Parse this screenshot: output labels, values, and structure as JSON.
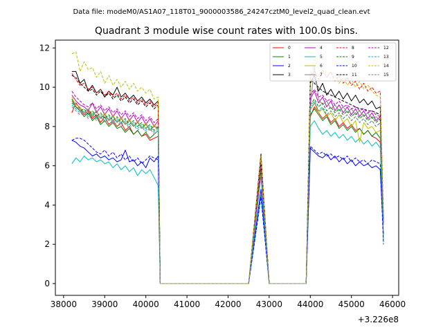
{
  "suptitle": "Data file: modeM0/AS1A07_118T01_9000003586_24247cztM0_level2_quad_clean.evt",
  "chart_data": {
    "type": "line",
    "title": "Quadrant 3 module wise count rates with 100.0s bins.",
    "xlabel": "",
    "ylabel": "",
    "x_offset_label": "+3.226e8",
    "xlim": [
      37800,
      46150
    ],
    "ylim": [
      -0.6,
      12.4
    ],
    "x_ticks": [
      38000,
      39000,
      40000,
      41000,
      42000,
      43000,
      44000,
      45000,
      46000
    ],
    "x_tick_labels": [
      "38000",
      "39000",
      "40000",
      "41000",
      "42000",
      "43000",
      "44000",
      "45000",
      "46000"
    ],
    "y_ticks": [
      0,
      2,
      4,
      6,
      8,
      10,
      12
    ],
    "y_tick_labels": [
      "0",
      "2",
      "4",
      "6",
      "8",
      "10",
      "12"
    ],
    "grid": false,
    "legend_position": "top-right",
    "x": [
      38200,
      38300,
      38400,
      38500,
      38600,
      38700,
      38800,
      38900,
      39000,
      39100,
      39200,
      39300,
      39400,
      39500,
      39600,
      39700,
      39800,
      39900,
      40000,
      40100,
      40200,
      40300,
      40350,
      40450,
      42500,
      42800,
      43000,
      43900,
      44000,
      44100,
      44200,
      44300,
      44400,
      44500,
      44600,
      44700,
      44800,
      44900,
      45000,
      45100,
      45200,
      45300,
      45400,
      45500,
      45600,
      45700,
      45780
    ],
    "series": [
      {
        "name": "0",
        "color": "#ff0000",
        "dashed": false,
        "values": [
          8.7,
          9.2,
          8.9,
          8.6,
          8.8,
          8.4,
          8.6,
          8.2,
          8.5,
          8.1,
          8.3,
          8.0,
          8.2,
          7.8,
          8.0,
          7.6,
          7.8,
          7.5,
          7.6,
          7.3,
          7.4,
          7.5,
          0,
          0,
          0,
          5.5,
          0,
          0,
          8.5,
          9.0,
          8.7,
          8.4,
          8.6,
          8.2,
          8.4,
          8.0,
          8.2,
          7.9,
          8.1,
          7.8,
          7.9,
          7.6,
          7.8,
          7.5,
          7.4,
          7.2,
          3.0
        ]
      },
      {
        "name": "1",
        "color": "#008000",
        "dashed": false,
        "values": [
          9.4,
          9.0,
          8.8,
          8.5,
          8.7,
          8.3,
          8.5,
          8.1,
          8.3,
          8.0,
          8.2,
          7.9,
          8.0,
          7.7,
          7.9,
          7.6,
          7.8,
          7.5,
          7.7,
          7.4,
          7.6,
          7.8,
          0,
          0,
          0,
          5.6,
          0,
          0,
          8.6,
          8.9,
          8.6,
          8.3,
          8.5,
          8.1,
          8.3,
          7.9,
          8.1,
          7.8,
          8.0,
          7.7,
          7.9,
          7.6,
          7.8,
          7.5,
          7.7,
          7.4,
          3.0
        ]
      },
      {
        "name": "2",
        "color": "#0000ff",
        "dashed": false,
        "values": [
          7.3,
          7.2,
          7.0,
          6.9,
          6.7,
          6.5,
          6.6,
          6.4,
          6.5,
          6.3,
          6.4,
          6.2,
          6.3,
          6.8,
          6.2,
          6.3,
          6.0,
          6.2,
          5.9,
          6.4,
          6.2,
          6.5,
          0,
          0,
          0,
          4.8,
          0,
          0,
          6.9,
          6.7,
          6.5,
          6.4,
          6.6,
          6.3,
          6.5,
          6.2,
          6.4,
          6.1,
          6.3,
          6.0,
          6.2,
          6.0,
          6.1,
          5.9,
          6.0,
          5.8,
          2.5
        ]
      },
      {
        "name": "3",
        "color": "#000000",
        "dashed": false,
        "values": [
          10.8,
          10.8,
          10.2,
          10.4,
          9.8,
          10.1,
          9.7,
          9.9,
          9.5,
          9.8,
          9.6,
          10.0,
          9.5,
          9.7,
          9.4,
          9.6,
          9.3,
          9.5,
          9.2,
          9.4,
          9.1,
          9.3,
          0,
          0,
          0,
          6.6,
          0,
          0,
          10.2,
          10.6,
          9.8,
          10.2,
          9.6,
          9.9,
          9.5,
          9.8,
          9.4,
          9.7,
          9.3,
          9.6,
          9.2,
          9.4,
          9.1,
          9.3,
          8.9,
          9.0,
          3.2
        ]
      },
      {
        "name": "4",
        "color": "#bf00bf",
        "dashed": false,
        "values": [
          9.6,
          9.3,
          9.1,
          9.0,
          8.8,
          9.2,
          8.7,
          9.0,
          8.6,
          8.9,
          8.5,
          8.8,
          8.4,
          8.7,
          8.3,
          8.6,
          8.2,
          8.5,
          8.1,
          8.4,
          8.0,
          8.3,
          0,
          0,
          0,
          5.9,
          0,
          0,
          9.4,
          9.8,
          9.2,
          9.5,
          9.0,
          9.3,
          8.8,
          9.1,
          8.7,
          9.0,
          8.6,
          8.9,
          8.5,
          8.8,
          8.4,
          8.7,
          8.3,
          8.5,
          3.1
        ]
      },
      {
        "name": "5",
        "color": "#00bfbf",
        "dashed": false,
        "values": [
          6.1,
          6.4,
          6.2,
          6.5,
          6.3,
          6.4,
          6.2,
          6.3,
          6.1,
          6.2,
          5.9,
          6.1,
          5.8,
          6.0,
          5.7,
          5.9,
          5.5,
          5.8,
          5.6,
          5.8,
          5.4,
          5.0,
          0,
          0,
          0,
          4.5,
          0,
          0,
          8.0,
          8.3,
          7.9,
          7.6,
          7.8,
          7.5,
          7.7,
          7.4,
          7.6,
          7.3,
          7.5,
          7.2,
          7.4,
          7.1,
          7.3,
          7.0,
          7.2,
          6.9,
          2.2
        ]
      },
      {
        "name": "6",
        "color": "#bfbf00",
        "dashed": false,
        "values": [
          9.5,
          9.1,
          9.0,
          8.7,
          8.9,
          8.6,
          8.8,
          8.4,
          8.7,
          8.3,
          8.6,
          8.2,
          8.5,
          8.1,
          8.4,
          8.0,
          8.3,
          7.9,
          8.2,
          7.8,
          8.1,
          7.9,
          0,
          0,
          0,
          6.3,
          0,
          0,
          8.8,
          9.2,
          8.7,
          8.9,
          8.5,
          8.7,
          8.3,
          8.6,
          8.2,
          8.4,
          8.0,
          8.3,
          7.2,
          8.2,
          7.9,
          8.0,
          7.7,
          7.8,
          3.1
        ]
      },
      {
        "name": "7",
        "color": "#808080",
        "dashed": false,
        "values": [
          9.3,
          9.0,
          8.9,
          8.7,
          8.9,
          8.5,
          8.8,
          8.4,
          8.6,
          8.3,
          8.5,
          8.2,
          8.4,
          8.1,
          8.3,
          8.0,
          8.2,
          7.9,
          8.1,
          7.8,
          8.0,
          7.9,
          0,
          0,
          0,
          5.8,
          0,
          0,
          9.0,
          11.1,
          9.4,
          9.1,
          9.3,
          8.9,
          9.1,
          8.8,
          9.0,
          8.7,
          8.9,
          8.6,
          8.8,
          8.5,
          8.7,
          8.4,
          8.5,
          8.3,
          3.0
        ]
      },
      {
        "name": "8",
        "color": "#ff0000",
        "dashed": true,
        "values": [
          10.7,
          10.4,
          10.1,
          10.2,
          9.9,
          10.0,
          9.7,
          9.9,
          9.6,
          9.8,
          9.5,
          9.7,
          9.4,
          9.6,
          9.3,
          9.5,
          9.2,
          9.4,
          9.1,
          9.3,
          9.0,
          9.2,
          0,
          0,
          0,
          6.4,
          0,
          0,
          10.6,
          10.8,
          10.4,
          10.9,
          10.5,
          10.8,
          10.3,
          10.6,
          10.2,
          10.5,
          10.1,
          10.3,
          9.9,
          10.2,
          9.8,
          10.0,
          9.7,
          9.8,
          3.4
        ]
      },
      {
        "name": "9",
        "color": "#008000",
        "dashed": true,
        "values": [
          9.2,
          9.0,
          8.8,
          8.9,
          8.6,
          8.8,
          8.5,
          8.7,
          8.4,
          8.6,
          8.3,
          8.5,
          8.2,
          8.4,
          8.1,
          8.3,
          8.0,
          8.2,
          7.9,
          8.1,
          7.8,
          8.0,
          0,
          0,
          0,
          5.7,
          0,
          0,
          9.1,
          9.4,
          9.0,
          9.2,
          8.8,
          9.0,
          8.7,
          8.9,
          8.6,
          8.8,
          8.5,
          8.7,
          8.4,
          8.6,
          8.3,
          8.5,
          8.2,
          8.4,
          3.0
        ]
      },
      {
        "name": "10",
        "color": "#0000ff",
        "dashed": true,
        "values": [
          7.3,
          7.4,
          7.4,
          7.3,
          7.1,
          6.9,
          6.7,
          6.6,
          6.8,
          6.5,
          6.7,
          6.4,
          6.6,
          6.3,
          6.5,
          6.2,
          6.4,
          6.1,
          6.3,
          6.5,
          6.4,
          6.3,
          0,
          0,
          0,
          4.4,
          0,
          0,
          7.0,
          6.8,
          6.6,
          6.7,
          6.5,
          6.6,
          6.4,
          6.5,
          6.3,
          6.5,
          6.2,
          6.4,
          6.2,
          6.3,
          6.1,
          6.3,
          6.2,
          6.1,
          2.0
        ]
      },
      {
        "name": "11",
        "color": "#000000",
        "dashed": true,
        "values": [
          10.6,
          10.5,
          10.2,
          10.0,
          9.8,
          9.9,
          9.6,
          9.8,
          9.5,
          9.7,
          9.4,
          9.6,
          9.3,
          9.5,
          9.2,
          9.4,
          9.1,
          9.3,
          9.0,
          9.2,
          8.9,
          9.1,
          0,
          0,
          0,
          6.1,
          0,
          0,
          10.4,
          10.2,
          10.0,
          9.8,
          9.7,
          9.6,
          9.5,
          9.4,
          9.3,
          9.2,
          9.1,
          9.0,
          8.9,
          8.9,
          8.8,
          8.8,
          8.7,
          8.6,
          3.2
        ]
      },
      {
        "name": "12",
        "color": "#bf00bf",
        "dashed": true,
        "values": [
          9.8,
          9.5,
          9.3,
          9.1,
          9.0,
          9.2,
          8.9,
          9.1,
          8.8,
          9.0,
          8.7,
          8.9,
          8.6,
          8.8,
          8.5,
          8.7,
          8.4,
          8.6,
          8.3,
          8.5,
          8.2,
          8.4,
          0,
          0,
          0,
          5.9,
          0,
          0,
          9.6,
          9.9,
          9.5,
          9.6,
          9.3,
          9.4,
          9.1,
          9.3,
          9.0,
          9.1,
          8.9,
          9.0,
          8.8,
          8.9,
          8.7,
          8.8,
          8.6,
          8.5,
          3.1
        ]
      },
      {
        "name": "13",
        "color": "#00bfbf",
        "dashed": true,
        "values": [
          9.1,
          8.9,
          8.7,
          8.8,
          8.5,
          8.7,
          8.4,
          8.6,
          8.3,
          8.5,
          8.2,
          8.4,
          8.1,
          8.3,
          8.0,
          8.2,
          7.9,
          8.1,
          7.8,
          8.0,
          7.7,
          7.9,
          0,
          0,
          0,
          5.6,
          0,
          0,
          9.0,
          9.3,
          8.8,
          9.0,
          8.6,
          8.8,
          8.5,
          8.7,
          8.4,
          8.6,
          8.3,
          8.5,
          8.2,
          8.4,
          8.1,
          8.3,
          8.0,
          8.2,
          3.0
        ]
      },
      {
        "name": "14",
        "color": "#bfbf00",
        "dashed": true,
        "values": [
          11.7,
          11.8,
          10.8,
          11.3,
          10.9,
          11.0,
          10.5,
          10.8,
          10.2,
          10.6,
          10.1,
          10.4,
          10.0,
          10.3,
          9.9,
          10.2,
          9.8,
          10.0,
          9.7,
          9.9,
          9.4,
          9.5,
          0,
          0,
          0,
          6.5,
          0,
          0,
          10.6,
          11.4,
          10.9,
          10.7,
          10.8,
          10.4,
          10.6,
          10.2,
          10.5,
          10.1,
          10.4,
          10.0,
          10.3,
          9.9,
          10.1,
          9.8,
          9.6,
          9.5,
          3.4
        ]
      },
      {
        "name": "15",
        "color": "#808080",
        "dashed": true,
        "values": [
          9.0,
          8.8,
          8.6,
          8.7,
          8.4,
          8.6,
          8.3,
          8.5,
          8.2,
          8.4,
          8.1,
          8.3,
          8.0,
          8.2,
          7.9,
          8.1,
          7.8,
          8.0,
          7.7,
          7.9,
          7.6,
          7.8,
          0,
          0,
          0,
          5.5,
          0,
          0,
          8.9,
          9.2,
          8.8,
          8.9,
          8.6,
          8.8,
          8.5,
          8.7,
          8.4,
          8.6,
          8.3,
          8.5,
          8.2,
          8.4,
          8.1,
          8.3,
          8.0,
          8.2,
          3.0
        ]
      }
    ]
  }
}
